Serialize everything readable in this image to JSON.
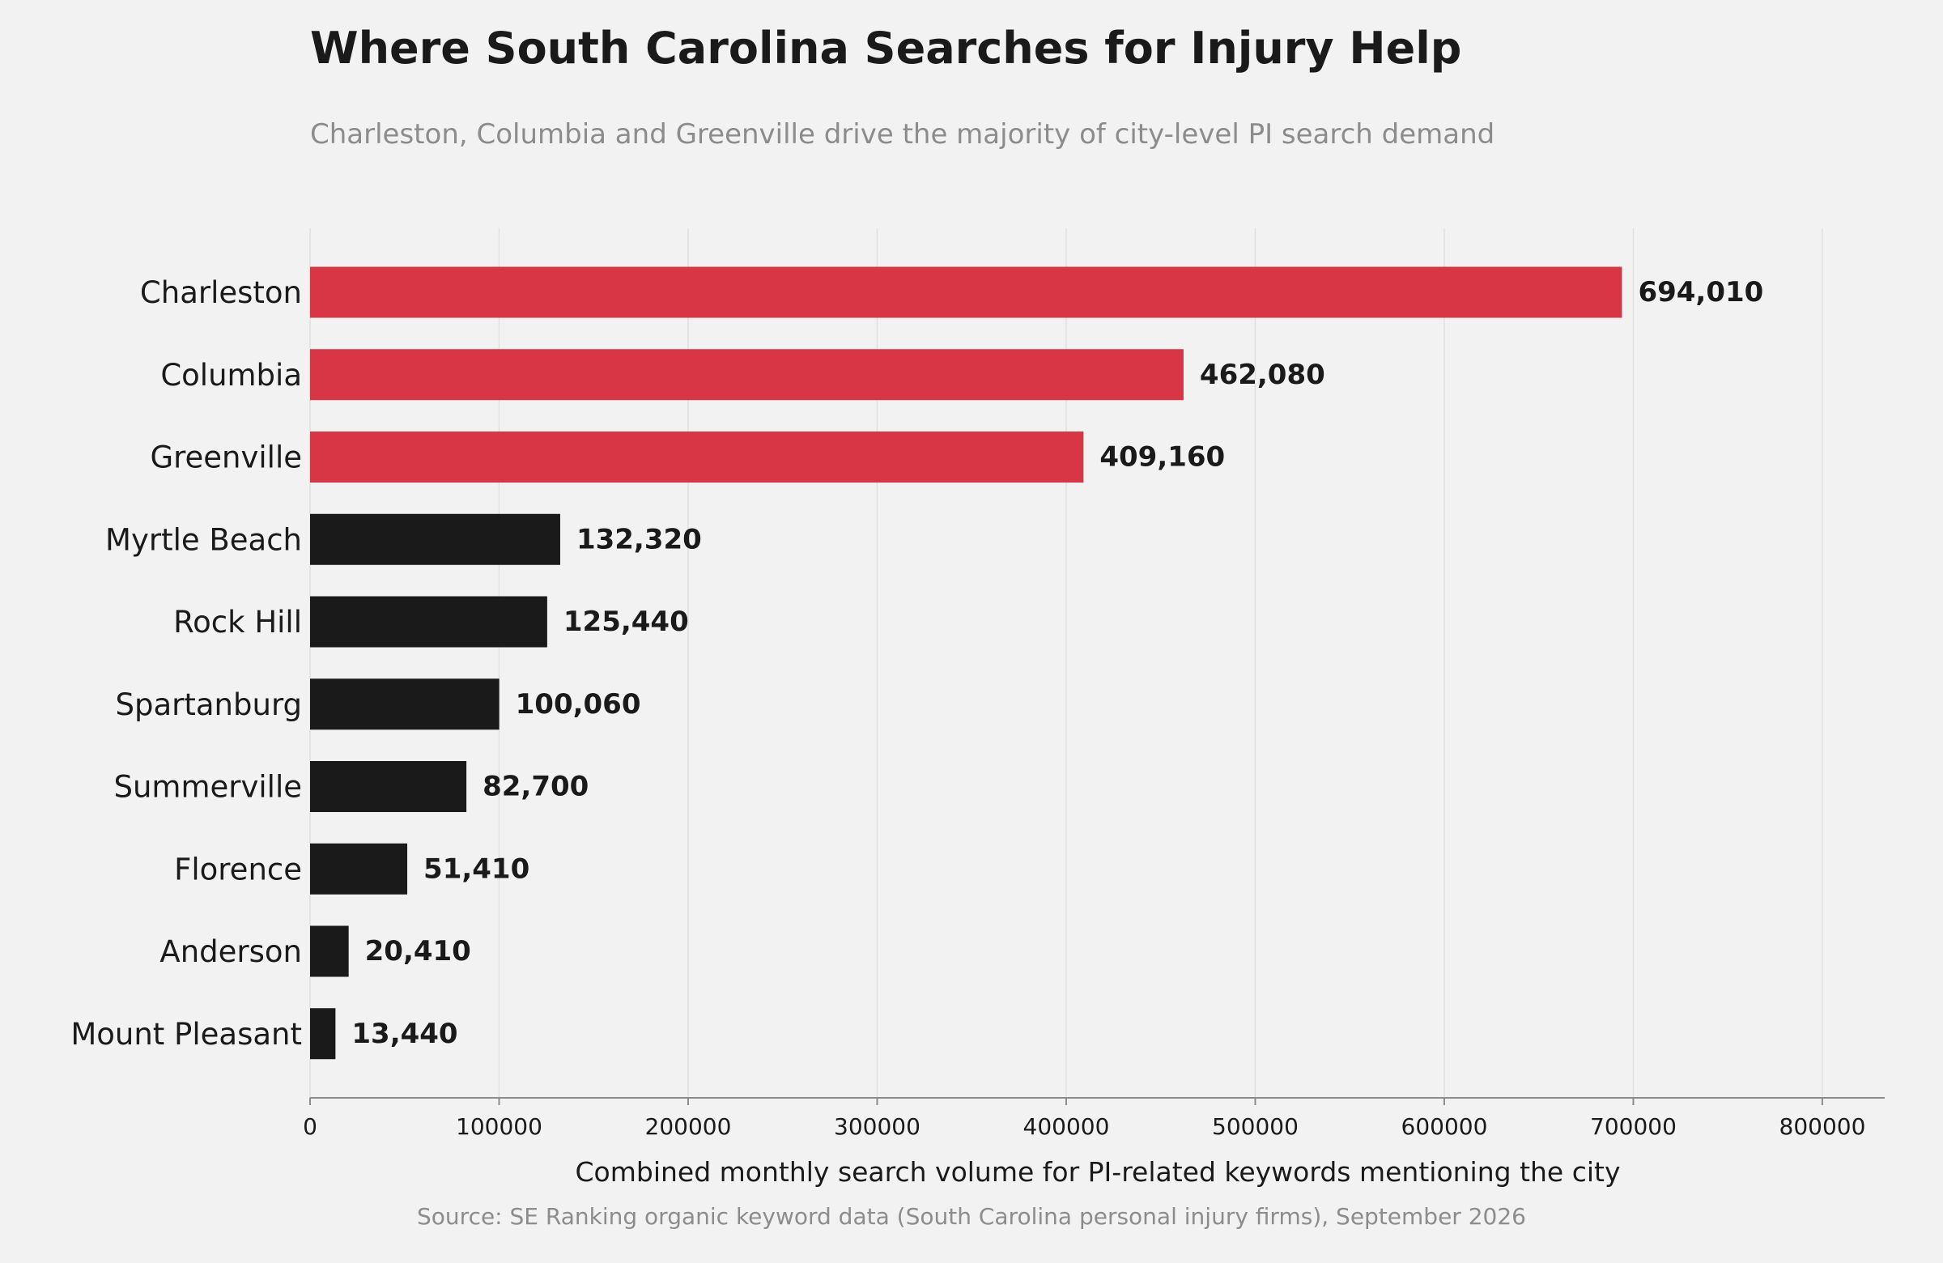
{
  "chart_data": {
    "type": "bar",
    "orientation": "horizontal",
    "title": "Where South Carolina Searches for Injury Help",
    "subtitle": "Charleston, Columbia and Greenville drive the majority of city-level PI search demand",
    "xlabel": "Combined monthly search volume for PI-related keywords mentioning the city",
    "ylabel": "",
    "source": "Source: SE Ranking organic keyword data (South Carolina personal injury firms), September 2026",
    "xlim": [
      0,
      833000
    ],
    "xticks": [
      0,
      100000,
      200000,
      300000,
      400000,
      500000,
      600000,
      700000,
      800000
    ],
    "xtick_labels": [
      "0",
      "100000",
      "200000",
      "300000",
      "400000",
      "500000",
      "600000",
      "700000",
      "800000"
    ],
    "grid": "vertical",
    "legend": "none",
    "categories": [
      "Charleston",
      "Columbia",
      "Greenville",
      "Myrtle Beach",
      "Rock Hill",
      "Spartanburg",
      "Summerville",
      "Florence",
      "Anderson",
      "Mount Pleasant"
    ],
    "values": [
      694010,
      462080,
      409160,
      132320,
      125440,
      100060,
      82700,
      51410,
      20410,
      13440
    ],
    "value_labels": [
      "694,010",
      "462,080",
      "409,160",
      "132,320",
      "125,440",
      "100,060",
      "82,700",
      "51,410",
      "20,410",
      "13,440"
    ],
    "highlight": [
      true,
      true,
      true,
      false,
      false,
      false,
      false,
      false,
      false,
      false
    ],
    "colors": {
      "highlight": "#d83545",
      "default": "#1a1a1a",
      "background": "#f2f2f2",
      "grid": "#e0e0e0",
      "axis": "#8c8c8c"
    }
  }
}
